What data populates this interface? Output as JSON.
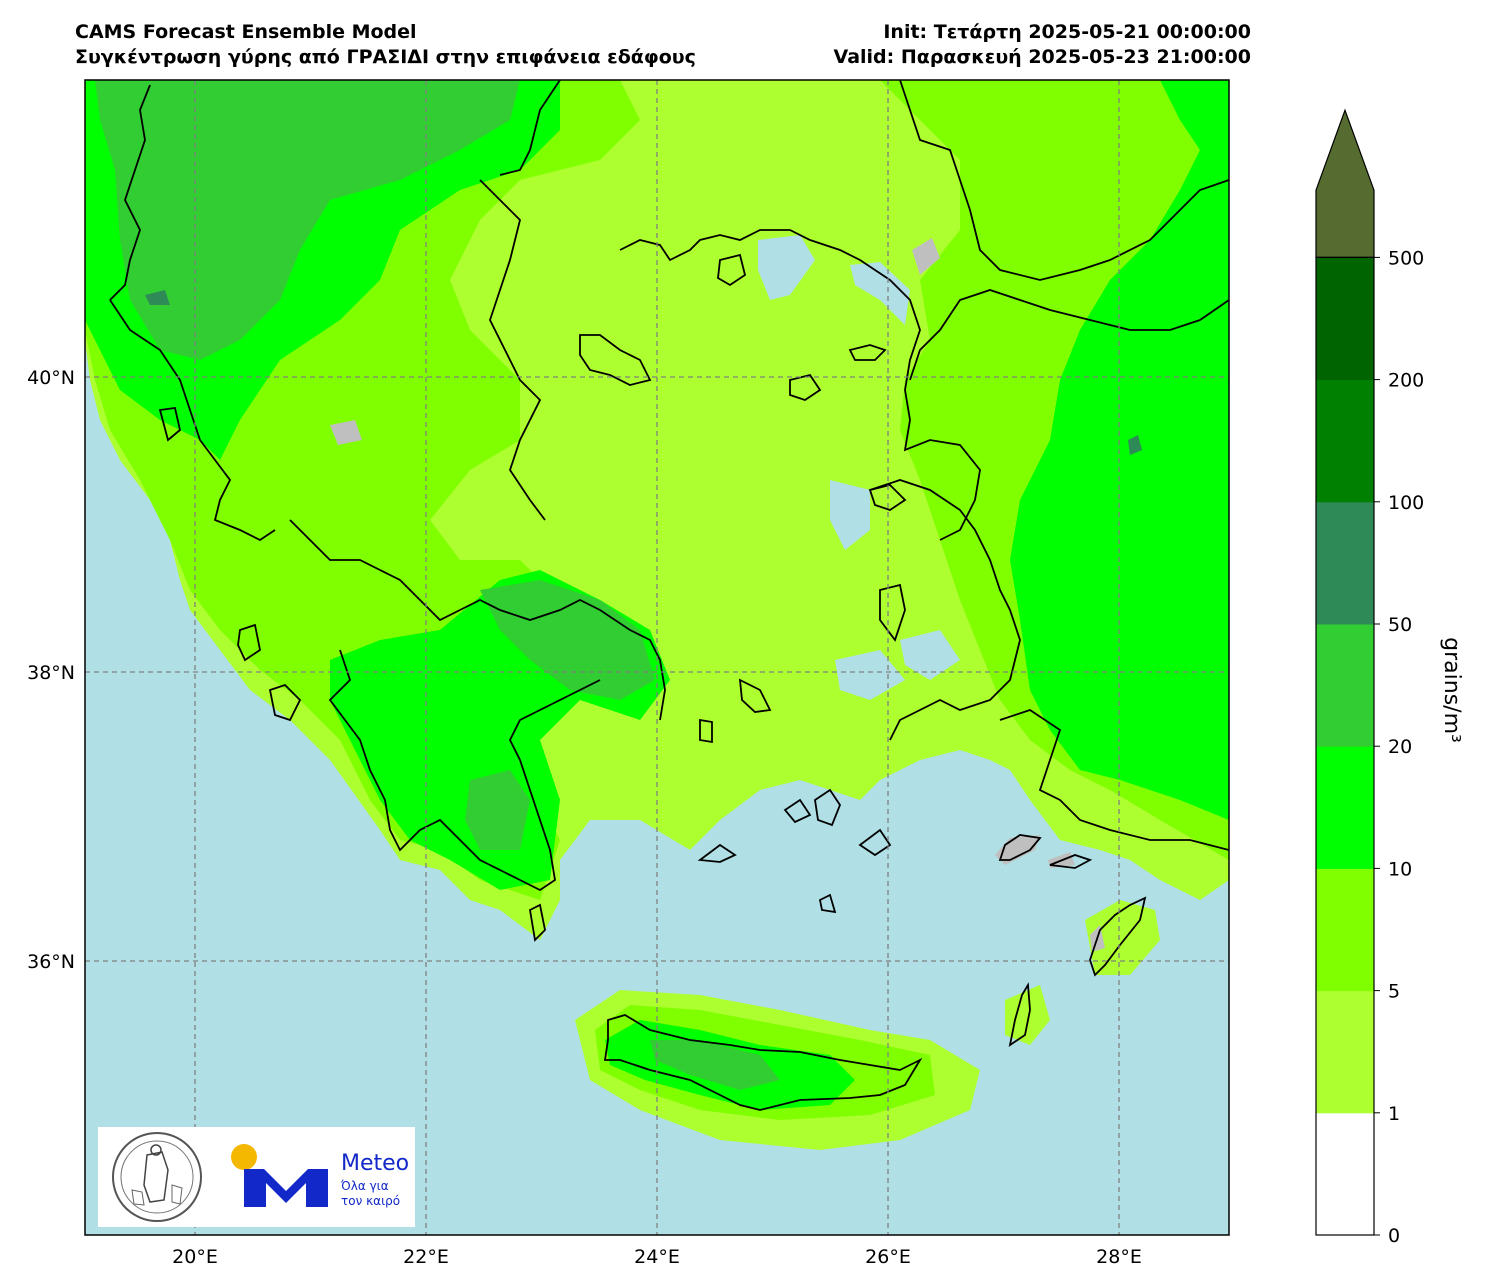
{
  "header": {
    "model": "CAMS Forecast Ensemble Model",
    "subtitle": "Συγκέντρωση γύρης από ΓΡΑΣΙΔΙ στην επιφάνεια εδάφους",
    "init": "Init: Τετάρτη 2025-05-21 00:00:00",
    "valid": "Valid: Παρασκευή 2025-05-23 21:00:00"
  },
  "map": {
    "lon_ticks": [
      "20°E",
      "22°E",
      "24°E",
      "26°E",
      "28°E"
    ],
    "lat_ticks": [
      "40°N",
      "38°N",
      "36°N"
    ],
    "sea_color": "#b0dfe5",
    "land_nodata_color": "#bfbfbf",
    "gridline_style": "dashed grey"
  },
  "colorbar": {
    "unit": "grains/m³",
    "extend": "max",
    "levels": [
      "0",
      "1",
      "5",
      "10",
      "20",
      "50",
      "100",
      "200",
      "500"
    ],
    "colors": [
      "#ffffff",
      "#adff2f",
      "#7fff00",
      "#00ff00",
      "#32cd32",
      "#2e8b57",
      "#008000",
      "#006400",
      "#556b2f"
    ]
  },
  "logos": {
    "seal": "National Observatory of Athens seal",
    "meteo_name": "Meteo",
    "meteo_tagline_1": "Όλα για",
    "meteo_tagline_2": "τον καιρό"
  }
}
